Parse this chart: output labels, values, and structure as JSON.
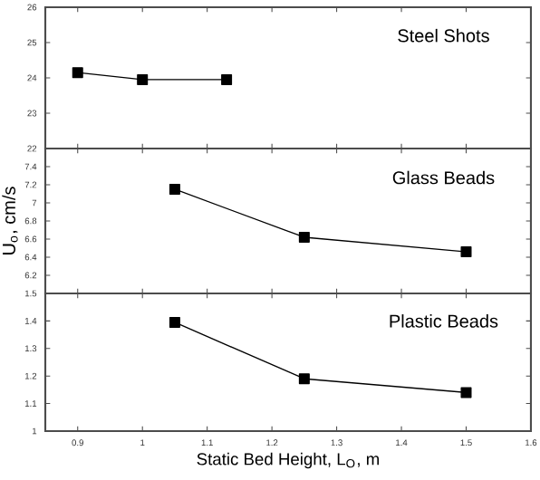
{
  "chart_data": [
    {
      "type": "line",
      "x": [
        0.9,
        1.0,
        1.13
      ],
      "values": [
        24.15,
        23.95,
        23.95
      ],
      "color": "#000000",
      "marker": "square",
      "line_style": "solid",
      "xlim": [
        0.85,
        1.6
      ],
      "xticks": [
        0.9,
        1,
        1.1,
        1.2,
        1.3,
        1.4,
        1.5,
        1.6
      ],
      "ylim": [
        22,
        26
      ],
      "yticks": [
        22,
        23,
        24,
        25,
        26
      ],
      "tick_labels": "y",
      "annotations": [
        "Steel Shots"
      ]
    },
    {
      "type": "line",
      "x": [
        1.05,
        1.25,
        1.5
      ],
      "values": [
        7.15,
        6.62,
        6.46
      ],
      "color": "#000000",
      "marker": "square",
      "line_style": "solid",
      "xlim": [
        0.85,
        1.6
      ],
      "xticks": [
        0.9,
        1,
        1.1,
        1.2,
        1.3,
        1.4,
        1.5,
        1.6
      ],
      "ylim": [
        6.0,
        7.6
      ],
      "yticks": [
        6.2,
        6.4,
        6.6,
        6.8,
        7,
        7.2,
        7.4
      ],
      "tick_labels": "y",
      "ylabel": "U$_{o}$, cm/s",
      "annotations": [
        "Glass Beads"
      ]
    },
    {
      "type": "line",
      "x": [
        1.05,
        1.25,
        1.5
      ],
      "values": [
        1.395,
        1.19,
        1.14
      ],
      "color": "#000000",
      "marker": "square",
      "line_style": "solid",
      "xlim": [
        0.85,
        1.6
      ],
      "xticks": [
        0.9,
        1,
        1.1,
        1.2,
        1.3,
        1.4,
        1.5,
        1.6
      ],
      "ylim": [
        1.0,
        1.5
      ],
      "yticks": [
        1,
        1.1,
        1.2,
        1.3,
        1.4,
        1.5
      ],
      "xlabel": "Static Bed Height, L$_{O}$, m",
      "annotations": [
        "Plastic Beads"
      ]
    }
  ]
}
